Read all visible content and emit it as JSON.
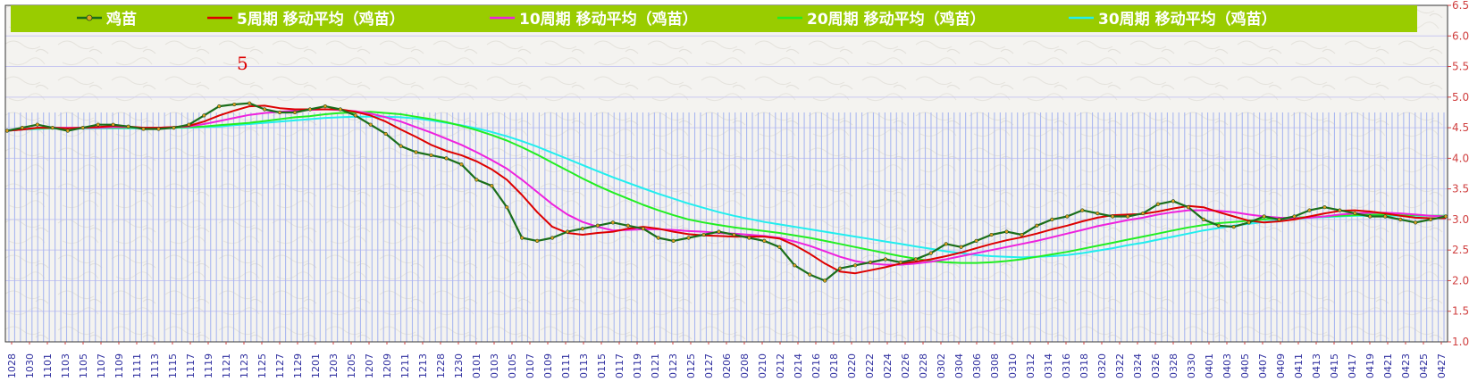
{
  "chart_data": {
    "type": "line",
    "colors": {
      "legend_bg": "#99cc00",
      "bars": "#aab8f0",
      "grid": "#c8c8f0",
      "axis_text_y": "#d04040",
      "axis_text_x": "#3030a0",
      "main": "#1a6e1a",
      "marker": "#e0a020"
    },
    "y_ticks": [
      "1.00",
      "1.50",
      "2.00",
      "2.50",
      "3.00",
      "3.50",
      "4.00",
      "4.50",
      "5.00",
      "5.50",
      "6.00",
      "6.50"
    ],
    "ylim": [
      1.0,
      6.5
    ],
    "annotation": "5",
    "x_tick_labels": [
      "1028",
      "1030",
      "1101",
      "1103",
      "1105",
      "1107",
      "1109",
      "1111",
      "1113",
      "1115",
      "1117",
      "1119",
      "1121",
      "1123",
      "1125",
      "1127",
      "1129",
      "1201",
      "1203",
      "1205",
      "1207",
      "1209",
      "1211",
      "1213",
      "1228",
      "1230",
      "0101",
      "0103",
      "0105",
      "0107",
      "0109",
      "0111",
      "0113",
      "0115",
      "0117",
      "0119",
      "0121",
      "0123",
      "0125",
      "0127",
      "0206",
      "0208",
      "0210",
      "0212",
      "0214",
      "0216",
      "0218",
      "0220",
      "0222",
      "0224",
      "0226",
      "0228",
      "0302",
      "0304",
      "0306",
      "0308",
      "0310",
      "0312",
      "0314",
      "0316",
      "0318",
      "0320",
      "0322",
      "0324",
      "0326",
      "0328",
      "0330",
      "0401",
      "0403",
      "0405",
      "0407",
      "0409",
      "0411",
      "0413",
      "0415",
      "0417",
      "0419",
      "0421",
      "0423",
      "0425",
      "0427"
    ],
    "series": [
      {
        "name": "鸡苗",
        "color": "#1a6e1a",
        "values": [
          4.45,
          4.5,
          4.55,
          4.5,
          4.45,
          4.5,
          4.55,
          4.55,
          4.52,
          4.48,
          4.48,
          4.5,
          4.55,
          4.7,
          4.85,
          4.88,
          4.9,
          4.8,
          4.75,
          4.75,
          4.8,
          4.85,
          4.8,
          4.7,
          4.55,
          4.4,
          4.2,
          4.1,
          4.05,
          4.0,
          3.9,
          3.65,
          3.55,
          3.2,
          2.7,
          2.65,
          2.7,
          2.8,
          2.85,
          2.9,
          2.95,
          2.9,
          2.85,
          2.7,
          2.65,
          2.7,
          2.75,
          2.8,
          2.75,
          2.7,
          2.65,
          2.55,
          2.25,
          2.1,
          2.0,
          2.2,
          2.25,
          2.3,
          2.35,
          2.3,
          2.35,
          2.45,
          2.6,
          2.55,
          2.65,
          2.75,
          2.8,
          2.75,
          2.9,
          3.0,
          3.05,
          3.15,
          3.1,
          3.05,
          3.05,
          3.1,
          3.25,
          3.3,
          3.2,
          3.0,
          2.9,
          2.88,
          2.95,
          3.05,
          3.0,
          3.05,
          3.15,
          3.2,
          3.15,
          3.1,
          3.05,
          3.05,
          3.0,
          2.95,
          3.0,
          3.05
        ]
      },
      {
        "name": "5周期 移动平均（鸡苗）",
        "color": "#dd0000",
        "values": [
          4.45,
          4.47,
          4.5,
          4.5,
          4.49,
          4.5,
          4.51,
          4.53,
          4.52,
          4.5,
          4.5,
          4.51,
          4.53,
          4.6,
          4.7,
          4.78,
          4.85,
          4.86,
          4.82,
          4.8,
          4.8,
          4.8,
          4.8,
          4.76,
          4.7,
          4.6,
          4.47,
          4.35,
          4.22,
          4.12,
          4.05,
          3.95,
          3.82,
          3.65,
          3.4,
          3.12,
          2.88,
          2.78,
          2.75,
          2.78,
          2.8,
          2.85,
          2.88,
          2.85,
          2.8,
          2.76,
          2.74,
          2.73,
          2.72,
          2.72,
          2.72,
          2.69,
          2.58,
          2.44,
          2.28,
          2.15,
          2.12,
          2.17,
          2.22,
          2.28,
          2.31,
          2.35,
          2.4,
          2.46,
          2.53,
          2.6,
          2.66,
          2.71,
          2.77,
          2.84,
          2.9,
          2.97,
          3.03,
          3.07,
          3.08,
          3.09,
          3.13,
          3.18,
          3.22,
          3.2,
          3.12,
          3.05,
          2.98,
          2.95,
          2.97,
          3.0,
          3.05,
          3.1,
          3.14,
          3.15,
          3.13,
          3.1,
          3.06,
          3.03,
          3.02,
          3.02
        ]
      },
      {
        "name": "10周期 移动平均（鸡苗）",
        "color": "#ee22dd",
        "values": [
          4.45,
          4.47,
          4.5,
          4.5,
          4.5,
          4.5,
          4.5,
          4.51,
          4.51,
          4.5,
          4.5,
          4.51,
          4.52,
          4.56,
          4.61,
          4.66,
          4.71,
          4.74,
          4.76,
          4.78,
          4.79,
          4.8,
          4.79,
          4.77,
          4.73,
          4.67,
          4.6,
          4.51,
          4.42,
          4.32,
          4.22,
          4.1,
          3.97,
          3.83,
          3.65,
          3.45,
          3.25,
          3.08,
          2.96,
          2.88,
          2.82,
          2.83,
          2.84,
          2.84,
          2.83,
          2.81,
          2.8,
          2.78,
          2.77,
          2.75,
          2.73,
          2.7,
          2.64,
          2.57,
          2.48,
          2.39,
          2.32,
          2.28,
          2.26,
          2.26,
          2.28,
          2.31,
          2.35,
          2.4,
          2.45,
          2.5,
          2.55,
          2.6,
          2.65,
          2.71,
          2.77,
          2.83,
          2.89,
          2.94,
          2.99,
          3.03,
          3.08,
          3.12,
          3.15,
          3.15,
          3.14,
          3.12,
          3.08,
          3.05,
          3.03,
          3.02,
          3.03,
          3.05,
          3.08,
          3.1,
          3.11,
          3.11,
          3.1,
          3.08,
          3.06,
          3.05
        ]
      },
      {
        "name": "20周期 移动平均（鸡苗）",
        "color": "#22ee22",
        "values": [
          4.45,
          4.47,
          4.49,
          4.49,
          4.49,
          4.5,
          4.5,
          4.5,
          4.5,
          4.5,
          4.5,
          4.5,
          4.51,
          4.52,
          4.54,
          4.56,
          4.58,
          4.61,
          4.64,
          4.67,
          4.69,
          4.72,
          4.74,
          4.75,
          4.76,
          4.74,
          4.72,
          4.68,
          4.64,
          4.59,
          4.53,
          4.46,
          4.38,
          4.29,
          4.18,
          4.06,
          3.93,
          3.8,
          3.67,
          3.55,
          3.44,
          3.34,
          3.24,
          3.15,
          3.07,
          3.0,
          2.95,
          2.91,
          2.87,
          2.84,
          2.81,
          2.78,
          2.74,
          2.7,
          2.65,
          2.6,
          2.55,
          2.5,
          2.45,
          2.4,
          2.36,
          2.32,
          2.3,
          2.29,
          2.29,
          2.3,
          2.32,
          2.35,
          2.39,
          2.43,
          2.47,
          2.52,
          2.57,
          2.62,
          2.67,
          2.72,
          2.77,
          2.82,
          2.87,
          2.91,
          2.94,
          2.96,
          2.98,
          3.0,
          3.02,
          3.03,
          3.04,
          3.05,
          3.06,
          3.07,
          3.08,
          3.08,
          3.07,
          3.07,
          3.06,
          3.06
        ]
      },
      {
        "name": "30周期 移动平均（鸡苗）",
        "color": "#22eeee",
        "values": [
          4.45,
          4.47,
          4.48,
          4.49,
          4.49,
          4.49,
          4.49,
          4.49,
          4.49,
          4.49,
          4.49,
          4.5,
          4.5,
          4.51,
          4.52,
          4.54,
          4.56,
          4.58,
          4.6,
          4.62,
          4.64,
          4.66,
          4.67,
          4.68,
          4.68,
          4.68,
          4.67,
          4.65,
          4.62,
          4.58,
          4.54,
          4.49,
          4.43,
          4.36,
          4.28,
          4.19,
          4.09,
          3.99,
          3.89,
          3.79,
          3.69,
          3.6,
          3.51,
          3.42,
          3.34,
          3.26,
          3.19,
          3.12,
          3.06,
          3.01,
          2.96,
          2.92,
          2.88,
          2.84,
          2.8,
          2.76,
          2.72,
          2.68,
          2.64,
          2.6,
          2.56,
          2.52,
          2.48,
          2.45,
          2.42,
          2.4,
          2.39,
          2.38,
          2.39,
          2.4,
          2.42,
          2.45,
          2.49,
          2.53,
          2.58,
          2.62,
          2.67,
          2.72,
          2.77,
          2.82,
          2.86,
          2.9,
          2.93,
          2.96,
          2.99,
          3.01,
          3.03,
          3.04,
          3.05,
          3.06,
          3.06,
          3.06,
          3.06,
          3.06,
          3.06,
          3.06
        ]
      }
    ]
  }
}
